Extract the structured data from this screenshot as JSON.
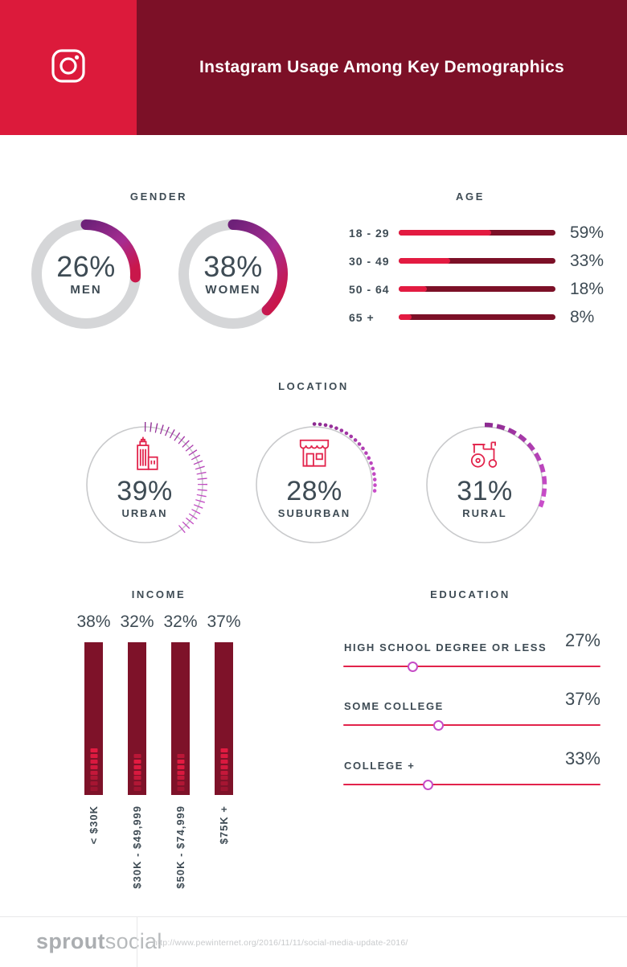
{
  "header": {
    "title": "Instagram Usage Among Key Demographics",
    "brand_icon": "instagram-icon"
  },
  "gender": {
    "title": "GENDER",
    "items": [
      {
        "display": "26%",
        "value": 26,
        "label": "MEN"
      },
      {
        "display": "38%",
        "value": 38,
        "label": "WOMEN"
      }
    ]
  },
  "age": {
    "title": "AGE",
    "rows": [
      {
        "label": "18 - 29",
        "value": 59,
        "display": "59%"
      },
      {
        "label": "30 - 49",
        "value": 33,
        "display": "33%"
      },
      {
        "label": "50 - 64",
        "value": 18,
        "display": "18%"
      },
      {
        "label": "65 +",
        "value": 8,
        "display": "8%"
      }
    ]
  },
  "location": {
    "title": "LOCATION",
    "items": [
      {
        "display": "39%",
        "value": 39,
        "label": "URBAN",
        "icon": "city-buildings-icon",
        "arc_style": "ticks"
      },
      {
        "display": "28%",
        "value": 28,
        "label": "SUBURBAN",
        "icon": "storefront-icon",
        "arc_style": "dots"
      },
      {
        "display": "31%",
        "value": 31,
        "label": "RURAL",
        "icon": "tractor-icon",
        "arc_style": "dashes"
      }
    ]
  },
  "income": {
    "title": "INCOME",
    "bars": [
      {
        "display": "38%",
        "value": 38,
        "label": "< $30K",
        "leds": [
          1,
          0.95,
          0.9,
          0.85,
          0.7,
          0.5,
          0.4,
          0.3
        ]
      },
      {
        "display": "32%",
        "value": 32,
        "label": "$30K - $49,999",
        "leds": [
          0.6,
          1,
          0.95,
          0.9,
          0.7,
          0.5,
          0.35
        ]
      },
      {
        "display": "32%",
        "value": 32,
        "label": "$50K - $74,999",
        "leds": [
          0.6,
          1,
          0.95,
          0.9,
          0.7,
          0.5,
          0.35
        ]
      },
      {
        "display": "37%",
        "value": 37,
        "label": "$75K +",
        "leds": [
          1,
          0.95,
          0.9,
          0.85,
          0.7,
          0.5,
          0.4,
          0.3
        ]
      }
    ]
  },
  "education": {
    "title": "EDUCATION",
    "rows": [
      {
        "label": "HIGH SCHOOL DEGREE OR LESS",
        "value": 27,
        "display": "27%"
      },
      {
        "label": "SOME COLLEGE",
        "value": 37,
        "display": "37%"
      },
      {
        "label": "COLLEGE +",
        "value": 33,
        "display": "33%"
      }
    ]
  },
  "footer": {
    "brand_bold": "sprout",
    "brand_light": "social",
    "source_url": "http://www.pewinternet.org/2016/11/11/social-media-update-2016/"
  },
  "colors": {
    "brand_crimson": "#DC1A3B",
    "header_maroon": "#7C1027",
    "bar_fill_crimson": "#E31B41",
    "bar_track_maroon": "#7C1027",
    "income_bar_maroon": "#7E1229",
    "text_slate": "#3E4B54",
    "ring_gray": "#D5D6D8",
    "circle_gray": "#C9CACC",
    "icon_red": "#E2234B",
    "slider_line_red": "#E2234B",
    "handle_magenta": "#C64CC6",
    "arc_purple": "#6E2179",
    "arc_magenta": "#A62C91",
    "arc_crimson": "#C9174B",
    "loc_arc_start": "#8C2A90",
    "loc_arc_end": "#CC4FCC"
  },
  "chart_data": [
    {
      "type": "donut",
      "title": "GENDER",
      "unit": "%",
      "series": [
        {
          "name": "MEN",
          "value": 26
        },
        {
          "name": "WOMEN",
          "value": 38
        }
      ]
    },
    {
      "type": "bar",
      "orientation": "horizontal",
      "title": "AGE",
      "unit": "%",
      "xlim": [
        0,
        100
      ],
      "categories": [
        "18 - 29",
        "30 - 49",
        "50 - 64",
        "65 +"
      ],
      "values": [
        59,
        33,
        18,
        8
      ]
    },
    {
      "type": "donut",
      "title": "LOCATION",
      "unit": "%",
      "series": [
        {
          "name": "URBAN",
          "value": 39
        },
        {
          "name": "SUBURBAN",
          "value": 28
        },
        {
          "name": "RURAL",
          "value": 31
        }
      ]
    },
    {
      "type": "bar",
      "orientation": "vertical",
      "title": "INCOME",
      "unit": "%",
      "categories": [
        "< $30K",
        "$30K - $49,999",
        "$50K - $74,999",
        "$75K +"
      ],
      "values": [
        38,
        32,
        32,
        37
      ]
    },
    {
      "type": "slider",
      "title": "EDUCATION",
      "unit": "%",
      "xlim": [
        0,
        100
      ],
      "categories": [
        "HIGH SCHOOL DEGREE OR LESS",
        "SOME COLLEGE",
        "COLLEGE +"
      ],
      "values": [
        27,
        37,
        33
      ]
    }
  ]
}
